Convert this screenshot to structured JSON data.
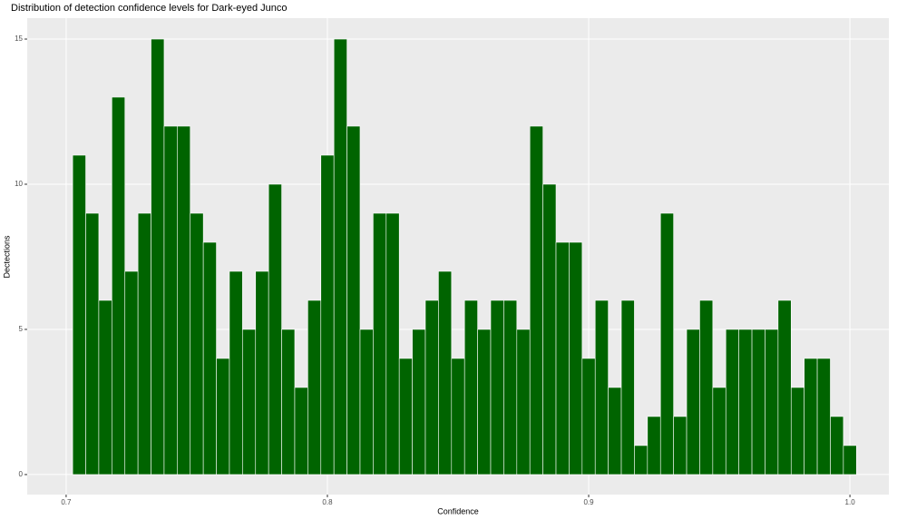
{
  "chart_data": {
    "type": "histogram",
    "title": "Distribution of detection confidence levels for Dark-eyed Junco",
    "x_label": "Confidence",
    "y_label": "Dectections",
    "bins": [
      0.7025,
      0.7075,
      0.7125,
      0.7175,
      0.7225,
      0.7275,
      0.7325,
      0.7375,
      0.7425,
      0.7475,
      0.7525,
      0.7575,
      0.7625,
      0.7675,
      0.7725,
      0.7775,
      0.7825,
      0.7875,
      0.7925,
      0.7975,
      0.8025,
      0.8075,
      0.8125,
      0.8175,
      0.8225,
      0.8275,
      0.8325,
      0.8375,
      0.8425,
      0.8475,
      0.8525,
      0.8575,
      0.8625,
      0.8675,
      0.8725,
      0.8775,
      0.8825,
      0.8875,
      0.8925,
      0.8975,
      0.9025,
      0.9075,
      0.9125,
      0.9175,
      0.9225,
      0.9275,
      0.9325,
      0.9375,
      0.9425,
      0.9475,
      0.9525,
      0.9575,
      0.9625,
      0.9675,
      0.9725,
      0.9775,
      0.9825,
      0.9875,
      0.9925,
      0.9975,
      1.0025
    ],
    "values": [
      11,
      9,
      6,
      13,
      7,
      9,
      15,
      12,
      12,
      9,
      8,
      4,
      7,
      5,
      7,
      10,
      5,
      3,
      6,
      11,
      15,
      12,
      5,
      9,
      9,
      4,
      5,
      6,
      7,
      4,
      6,
      5,
      6,
      6,
      5,
      12,
      10,
      8,
      8,
      4,
      6,
      3,
      6,
      1,
      2,
      9,
      2,
      5,
      6,
      3,
      5,
      5,
      5,
      5,
      6,
      3,
      4,
      4,
      2,
      1
    ],
    "color": "#006400",
    "xlim": [
      0.6851,
      1.0149
    ],
    "xticks": [
      0.7,
      0.8,
      0.9,
      {
        "value": 1,
        "label": "1.0"
      }
    ],
    "ylim": [
      -0.69,
      15.72
    ],
    "yticks": [
      0,
      5,
      10,
      15
    ],
    "grid": true
  }
}
